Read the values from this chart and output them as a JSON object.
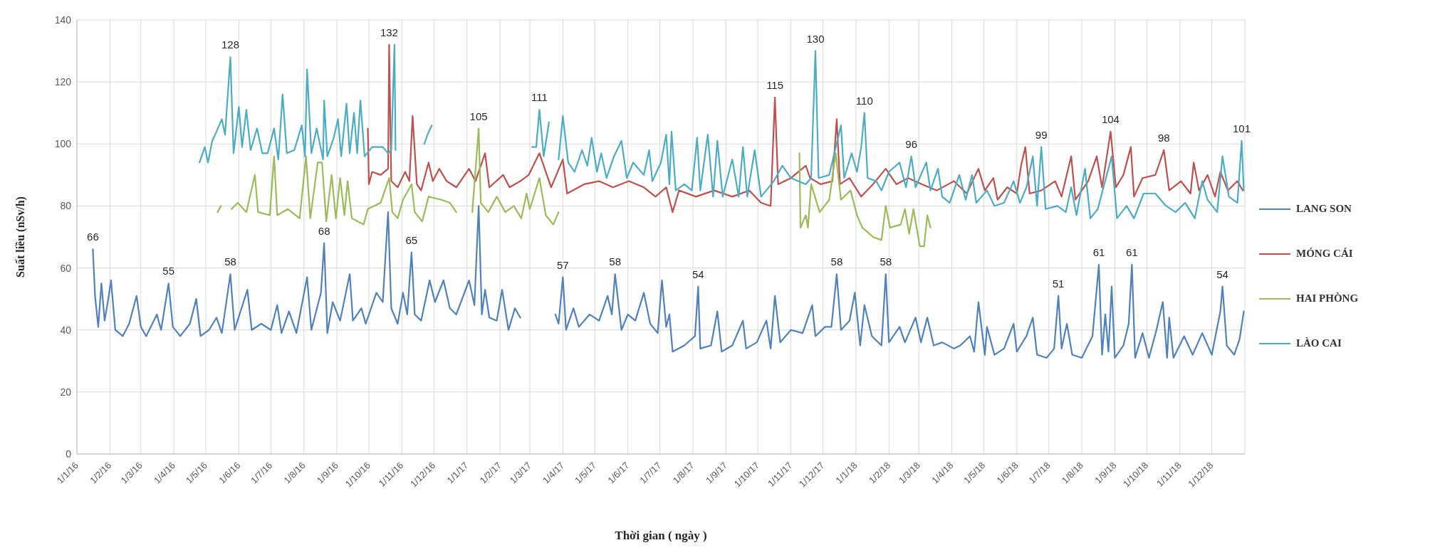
{
  "chart_data": {
    "type": "line",
    "xlabel": "Thời gian ( ngày )",
    "ylabel": "Suất liều (nSv/h)",
    "xlim": [
      "2016-01-01",
      "2019-01-01"
    ],
    "ylim": [
      0,
      140
    ],
    "yticks": [
      0,
      20,
      40,
      60,
      80,
      100,
      120,
      140
    ],
    "xticks": [
      {
        "value": "2016-01-01",
        "label": "1/1/16"
      },
      {
        "value": "2016-02-01",
        "label": "1/2/16"
      },
      {
        "value": "2016-03-01",
        "label": "1/3/16"
      },
      {
        "value": "2016-04-01",
        "label": "1/4/16"
      },
      {
        "value": "2016-05-01",
        "label": "1/5/16"
      },
      {
        "value": "2016-06-01",
        "label": "1/6/16"
      },
      {
        "value": "2016-07-01",
        "label": "1/7/16"
      },
      {
        "value": "2016-08-01",
        "label": "1/8/16"
      },
      {
        "value": "2016-09-01",
        "label": "1/9/16"
      },
      {
        "value": "2016-10-01",
        "label": "1/10/16"
      },
      {
        "value": "2016-11-01",
        "label": "1/11/16"
      },
      {
        "value": "2016-12-01",
        "label": "1/12/16"
      },
      {
        "value": "2017-01-01",
        "label": "1/1/17"
      },
      {
        "value": "2017-02-01",
        "label": "1/2/17"
      },
      {
        "value": "2017-03-01",
        "label": "1/3/17"
      },
      {
        "value": "2017-04-01",
        "label": "1/4/17"
      },
      {
        "value": "2017-05-01",
        "label": "1/5/17"
      },
      {
        "value": "2017-06-01",
        "label": "1/6/17"
      },
      {
        "value": "2017-07-01",
        "label": "1/7/17"
      },
      {
        "value": "2017-08-01",
        "label": "1/8/17"
      },
      {
        "value": "2017-09-01",
        "label": "1/9/17"
      },
      {
        "value": "2017-10-01",
        "label": "1/10/17"
      },
      {
        "value": "2017-11-01",
        "label": "1/11/17"
      },
      {
        "value": "2017-12-01",
        "label": "1/12/17"
      },
      {
        "value": "2018-01-01",
        "label": "1/1/18"
      },
      {
        "value": "2018-02-01",
        "label": "1/2/18"
      },
      {
        "value": "2018-03-01",
        "label": "1/3/18"
      },
      {
        "value": "2018-04-01",
        "label": "1/4/18"
      },
      {
        "value": "2018-05-01",
        "label": "1/5/18"
      },
      {
        "value": "2018-06-01",
        "label": "1/6/18"
      },
      {
        "value": "2018-07-01",
        "label": "1/7/18"
      },
      {
        "value": "2018-08-01",
        "label": "1/8/18"
      },
      {
        "value": "2018-09-01",
        "label": "1/9/18"
      },
      {
        "value": "2018-10-01",
        "label": "1/10/18"
      },
      {
        "value": "2018-11-01",
        "label": "1/11/18"
      },
      {
        "value": "2018-12-01",
        "label": "1/12/18"
      }
    ],
    "grid": true,
    "legend": "right",
    "marker": "none",
    "line_style": "solid",
    "series": [
      {
        "name": "LANG SON",
        "color": "#4f81bd",
        "x": [
          "2016-01-16",
          "2016-01-18",
          "2016-01-21",
          "2016-01-24",
          "2016-01-27",
          "2016-01-30",
          "2016-02-02",
          "2016-02-06",
          "2016-02-13",
          "2016-02-19",
          "2016-02-26",
          "2016-03-01",
          "2016-03-06",
          "2016-03-16",
          "2016-03-20",
          "2016-03-27",
          "2016-03-31",
          "2016-04-07",
          "2016-04-16",
          "2016-04-22",
          "2016-04-26",
          "2016-05-04",
          "2016-05-11",
          "2016-05-16",
          "2016-05-24",
          "2016-05-28",
          "2016-06-09",
          "2016-06-13",
          "2016-06-22",
          "2016-07-01",
          "2016-07-07",
          "2016-07-11",
          "2016-07-18",
          "2016-07-25",
          "2016-08-04",
          "2016-08-08",
          "2016-08-17",
          "2016-08-20",
          "2016-08-23",
          "2016-08-28",
          "2016-09-04",
          "2016-09-13",
          "2016-09-16",
          "2016-09-24",
          "2016-09-28",
          "2016-10-08",
          "2016-10-14",
          "2016-10-19",
          "2016-10-22",
          "2016-10-28",
          "2016-11-02",
          "2016-11-06",
          "2016-11-10",
          "2016-11-13",
          "2016-11-19",
          "2016-11-27",
          "2016-12-02",
          "2016-12-10",
          "2016-12-16",
          "2016-12-22",
          "2017-01-03",
          "2017-01-08",
          "2017-01-12",
          "2017-01-15",
          "2017-01-18",
          "2017-01-22",
          "2017-01-29",
          "2017-02-03",
          "2017-02-09",
          "2017-02-15",
          "2017-02-20",
          "2017-03-05",
          "2017-03-25",
          "2017-03-28",
          "2017-04-01",
          "2017-04-04",
          "2017-04-11",
          "2017-04-16",
          "2017-04-26",
          "2017-05-05",
          "2017-05-13",
          "2017-05-17",
          "2017-05-20",
          "2017-05-26",
          "2017-06-01",
          "2017-06-08",
          "2017-06-16",
          "2017-06-22",
          "2017-06-29",
          "2017-07-03",
          "2017-07-07",
          "2017-07-10",
          "2017-07-13",
          "2017-07-24",
          "2017-08-03",
          "2017-08-06",
          "2017-08-08",
          "2017-08-18",
          "2017-08-24",
          "2017-08-28",
          "2017-09-07",
          "2017-09-17",
          "2017-09-20",
          "2017-09-30",
          "2017-10-09",
          "2017-10-13",
          "2017-10-17",
          "2017-10-22",
          "2017-11-01",
          "2017-11-12",
          "2017-11-21",
          "2017-11-24",
          "2017-12-03",
          "2017-12-09",
          "2017-12-14",
          "2017-12-18",
          "2017-12-26",
          "2017-12-31",
          "2018-01-05",
          "2018-01-09",
          "2018-01-16",
          "2018-01-25",
          "2018-01-29",
          "2018-02-01",
          "2018-02-11",
          "2018-02-16",
          "2018-02-26",
          "2018-03-03",
          "2018-03-09",
          "2018-03-15",
          "2018-03-23",
          "2018-04-03",
          "2018-04-09",
          "2018-04-18",
          "2018-04-22",
          "2018-04-26",
          "2018-05-02",
          "2018-05-04",
          "2018-05-11",
          "2018-05-20",
          "2018-05-29",
          "2018-06-01",
          "2018-06-10",
          "2018-06-16",
          "2018-06-20",
          "2018-06-29",
          "2018-07-06",
          "2018-07-10",
          "2018-07-13",
          "2018-07-18",
          "2018-07-23",
          "2018-08-01",
          "2018-08-11",
          "2018-08-17",
          "2018-08-20",
          "2018-08-23",
          "2018-08-26",
          "2018-08-29",
          "2018-09-01",
          "2018-09-09",
          "2018-09-14",
          "2018-09-17",
          "2018-09-20",
          "2018-09-27",
          "2018-10-03",
          "2018-10-10",
          "2018-10-16",
          "2018-10-20",
          "2018-10-22",
          "2018-10-26",
          "2018-11-05",
          "2018-11-13",
          "2018-11-22",
          "2018-12-01",
          "2018-12-09",
          "2018-12-11",
          "2018-12-15",
          "2018-12-22",
          "2018-12-27",
          "2018-12-31"
        ],
        "values": [
          66,
          51,
          41,
          55,
          43,
          49,
          56,
          40,
          38,
          42,
          51,
          41,
          38,
          45,
          40,
          55,
          41,
          38,
          42,
          50,
          38,
          40,
          44,
          39,
          58,
          40,
          53,
          40,
          42,
          40,
          48,
          39,
          46,
          39,
          57,
          40,
          52,
          68,
          39,
          49,
          43,
          58,
          43,
          47,
          42,
          52,
          49,
          78,
          47,
          42,
          52,
          45,
          65,
          45,
          43,
          56,
          49,
          56,
          47,
          45,
          56,
          48,
          80,
          45,
          53,
          44,
          43,
          53,
          40,
          47,
          44,
          null,
          45,
          42,
          57,
          40,
          47,
          41,
          45,
          43,
          51,
          45,
          58,
          40,
          45,
          43,
          52,
          42,
          39,
          56,
          41,
          45,
          33,
          35,
          38,
          54,
          34,
          35,
          46,
          33,
          35,
          43,
          34,
          36,
          43,
          34,
          51,
          36,
          40,
          39,
          48,
          38,
          41,
          41,
          58,
          40,
          43,
          52,
          35,
          48,
          38,
          35,
          58,
          36,
          41,
          36,
          44,
          36,
          44,
          35,
          36,
          34,
          35,
          38,
          33,
          49,
          32,
          41,
          32,
          34,
          42,
          33,
          38,
          44,
          32,
          31,
          34,
          51,
          34,
          42,
          32,
          31,
          38,
          61,
          32,
          45,
          33,
          54,
          31,
          35,
          42,
          61,
          31,
          39,
          31,
          40,
          49,
          31,
          44,
          31,
          38,
          32,
          39,
          32,
          46,
          54,
          35,
          32,
          37,
          46
        ],
        "value_labels": [
          "66",
          null,
          null,
          null,
          null,
          null,
          null,
          null,
          null,
          null,
          null,
          null,
          null,
          null,
          null,
          "55",
          null,
          null,
          null,
          null,
          null,
          null,
          null,
          null,
          "58",
          null,
          null,
          null,
          null,
          null,
          null,
          null,
          null,
          null,
          null,
          null,
          null,
          "68",
          null,
          null,
          null,
          null,
          null,
          null,
          null,
          null,
          null,
          null,
          null,
          null,
          null,
          null,
          "65",
          null,
          null,
          null,
          null,
          null,
          null,
          null,
          null,
          null,
          null,
          null,
          null,
          null,
          null,
          null,
          null,
          null,
          null,
          null,
          null,
          null,
          "57",
          null,
          null,
          null,
          null,
          null,
          null,
          null,
          "58",
          null,
          null,
          null,
          null,
          null,
          null,
          null,
          null,
          null,
          null,
          null,
          null,
          "54",
          null,
          null,
          null,
          null,
          null,
          null,
          null,
          null,
          null,
          null,
          null,
          null,
          null,
          null,
          null,
          null,
          null,
          null,
          "58",
          null,
          null,
          null,
          null,
          null,
          null,
          null,
          "58",
          null,
          null,
          null,
          null,
          null,
          null,
          null,
          null,
          null,
          null,
          null,
          null,
          null,
          null,
          null,
          null,
          null,
          null,
          null,
          null,
          null,
          null,
          null,
          null,
          "51",
          null,
          null,
          null,
          null,
          null,
          "61",
          null,
          null,
          null,
          null,
          null,
          null,
          null,
          "61",
          null,
          null,
          null,
          null,
          null,
          null,
          null,
          null,
          null,
          null,
          null,
          null,
          null,
          "54",
          null,
          null,
          null,
          null
        ]
      },
      {
        "name": "MÓNG CÁI",
        "color": "#c0504d",
        "x": [
          "2016-09-30",
          "2016-10-01",
          "2016-10-04",
          "2016-10-12",
          "2016-10-19",
          "2016-10-20",
          "2016-10-22",
          "2016-10-28",
          "2016-11-04",
          "2016-11-08",
          "2016-11-11",
          "2016-11-15",
          "2016-11-19",
          "2016-11-26",
          "2016-11-30",
          "2016-12-06",
          "2016-12-13",
          "2016-12-22",
          "2017-01-03",
          "2017-01-09",
          "2017-01-18",
          "2017-01-22",
          "2017-02-04",
          "2017-02-10",
          "2017-02-20",
          "2017-02-28",
          "2017-03-10",
          "2017-03-21",
          "2017-04-01",
          "2017-04-05",
          "2017-04-21",
          "2017-05-05",
          "2017-05-18",
          "2017-06-02",
          "2017-06-16",
          "2017-06-27",
          "2017-07-07",
          "2017-07-13",
          "2017-07-19",
          "2017-08-04",
          "2017-08-21",
          "2017-09-07",
          "2017-09-23",
          "2017-10-04",
          "2017-10-13",
          "2017-10-17",
          "2017-10-20",
          "2017-11-01",
          "2017-11-15",
          "2017-11-19",
          "2017-11-29",
          "2017-12-10",
          "2017-12-14",
          "2017-12-17",
          "2017-12-26",
          "2018-01-06",
          "2018-01-17",
          "2018-01-29",
          "2018-02-08",
          "2018-02-19",
          "2018-03-04",
          "2018-03-18",
          "2018-04-03",
          "2018-04-15",
          "2018-04-26",
          "2018-05-02",
          "2018-05-10",
          "2018-05-14",
          "2018-05-23",
          "2018-06-01",
          "2018-06-05",
          "2018-06-09",
          "2018-06-13",
          "2018-06-24",
          "2018-07-07",
          "2018-07-13",
          "2018-07-22",
          "2018-07-26",
          "2018-08-07",
          "2018-08-15",
          "2018-08-20",
          "2018-08-28",
          "2018-09-02",
          "2018-09-09",
          "2018-09-16",
          "2018-09-19",
          "2018-09-27",
          "2018-10-09",
          "2018-10-17",
          "2018-10-22",
          "2018-11-02",
          "2018-11-11",
          "2018-11-14",
          "2018-11-19",
          "2018-11-27",
          "2018-12-04",
          "2018-12-09",
          "2018-12-16",
          "2018-12-25",
          "2018-12-30"
        ],
        "values": [
          105,
          87,
          91,
          90,
          92,
          132,
          88,
          86,
          91,
          88,
          109,
          87,
          85,
          94,
          88,
          92,
          88,
          86,
          92,
          88,
          97,
          86,
          90,
          86,
          88,
          90,
          97,
          86,
          95,
          84,
          87,
          88,
          86,
          88,
          86,
          83,
          86,
          78,
          85,
          83,
          85,
          83,
          85,
          81,
          80,
          115,
          87,
          89,
          93,
          89,
          87,
          88,
          108,
          87,
          89,
          83,
          87,
          92,
          87,
          89,
          87,
          85,
          88,
          84,
          92,
          85,
          89,
          82,
          86,
          84,
          93,
          99,
          84,
          85,
          88,
          83,
          96,
          82,
          88,
          96,
          86,
          104,
          86,
          90,
          99,
          83,
          89,
          90,
          98,
          85,
          88,
          84,
          94,
          85,
          90,
          83,
          91,
          85,
          88,
          85
        ],
        "value_labels": [
          null,
          null,
          null,
          null,
          null,
          "132",
          null,
          null,
          null,
          null,
          null,
          null,
          null,
          null,
          null,
          null,
          null,
          null,
          null,
          null,
          null,
          null,
          null,
          null,
          null,
          null,
          null,
          null,
          null,
          null,
          null,
          null,
          null,
          null,
          null,
          null,
          null,
          null,
          null,
          null,
          null,
          null,
          null,
          null,
          null,
          "115",
          null,
          null,
          null,
          null,
          null,
          null,
          null,
          null,
          null,
          null,
          null,
          null,
          null,
          null,
          null,
          null,
          null,
          null,
          null,
          null,
          null,
          null,
          null,
          null,
          null,
          null,
          null,
          null,
          null,
          null,
          null,
          null,
          null,
          null,
          null,
          "104",
          null,
          null,
          null,
          null,
          null,
          null,
          "98",
          null,
          null,
          null,
          null,
          null,
          null,
          null,
          null,
          null,
          null,
          null
        ]
      },
      {
        "name": "HAI PHÒNG",
        "color": "#9bbb59",
        "x": [
          "2016-05-12",
          "2016-05-15",
          "2016-05-18",
          "2016-05-25",
          "2016-05-31",
          "2016-06-08",
          "2016-06-16",
          "2016-06-19",
          "2016-06-30",
          "2016-07-04",
          "2016-07-07",
          "2016-07-17",
          "2016-07-28",
          "2016-08-03",
          "2016-08-07",
          "2016-08-14",
          "2016-08-18",
          "2016-08-22",
          "2016-08-27",
          "2016-08-31",
          "2016-09-04",
          "2016-09-08",
          "2016-09-11",
          "2016-09-15",
          "2016-09-26",
          "2016-09-30",
          "2016-10-12",
          "2016-10-20",
          "2016-10-23",
          "2016-10-28",
          "2016-11-02",
          "2016-11-10",
          "2016-11-13",
          "2016-11-20",
          "2016-11-26",
          "2016-12-08",
          "2016-12-16",
          "2016-12-22",
          "2016-12-29",
          "2017-01-06",
          "2017-01-12",
          "2017-01-14",
          "2017-01-21",
          "2017-01-29",
          "2017-02-06",
          "2017-02-14",
          "2017-02-21",
          "2017-02-26",
          "2017-03-01",
          "2017-03-10",
          "2017-03-16",
          "2017-03-23",
          "2017-03-28",
          "2017-06-01",
          "2017-11-09",
          "2017-11-10",
          "2017-11-15",
          "2017-11-17",
          "2017-11-20",
          "2017-11-28",
          "2017-12-07",
          "2017-12-13",
          "2017-12-18",
          "2017-12-27",
          "2018-01-02",
          "2018-01-07",
          "2018-01-17",
          "2018-01-25",
          "2018-01-29",
          "2018-02-02",
          "2018-02-12",
          "2018-02-16",
          "2018-02-20",
          "2018-02-24",
          "2018-03-02",
          "2018-03-06",
          "2018-03-09",
          "2018-03-12"
        ],
        "values": [
          78,
          80,
          null,
          79,
          81,
          78,
          90,
          78,
          77,
          96,
          77,
          79,
          76,
          96,
          76,
          94,
          94,
          75,
          90,
          76,
          89,
          77,
          88,
          76,
          74,
          79,
          81,
          89,
          78,
          76,
          82,
          87,
          78,
          75,
          83,
          82,
          81,
          78,
          null,
          78,
          105,
          81,
          78,
          83,
          78,
          80,
          76,
          84,
          79,
          89,
          77,
          74,
          78,
          null,
          97,
          73,
          77,
          73,
          87,
          78,
          82,
          97,
          82,
          85,
          77,
          73,
          70,
          69,
          80,
          73,
          74,
          79,
          71,
          79,
          67,
          67,
          77,
          73
        ],
        "value_labels": [
          null,
          null,
          null,
          null,
          null,
          null,
          null,
          null,
          null,
          null,
          null,
          null,
          null,
          null,
          null,
          null,
          null,
          null,
          null,
          null,
          null,
          null,
          null,
          null,
          null,
          null,
          null,
          null,
          null,
          null,
          null,
          null,
          null,
          null,
          null,
          null,
          null,
          null,
          null,
          null,
          "105",
          null,
          null,
          null,
          null,
          null,
          null,
          null,
          null,
          null,
          null,
          null,
          null,
          null,
          null,
          null,
          null,
          null,
          null,
          null,
          null,
          null,
          null,
          null,
          null,
          null,
          null,
          null,
          null,
          null,
          null,
          null,
          null,
          null,
          null,
          null,
          null,
          null
        ]
      },
      {
        "name": "LÀO CAI",
        "color": "#4bacc6",
        "x": [
          "2016-04-25",
          "2016-04-30",
          "2016-05-03",
          "2016-05-07",
          "2016-05-11",
          "2016-05-16",
          "2016-05-19",
          "2016-05-24",
          "2016-05-27",
          "2016-06-01",
          "2016-06-04",
          "2016-06-08",
          "2016-06-12",
          "2016-06-18",
          "2016-06-23",
          "2016-06-28",
          "2016-07-04",
          "2016-07-08",
          "2016-07-12",
          "2016-07-16",
          "2016-07-23",
          "2016-07-30",
          "2016-08-02",
          "2016-08-04",
          "2016-08-08",
          "2016-08-13",
          "2016-08-19",
          "2016-08-20",
          "2016-08-23",
          "2016-08-29",
          "2016-09-02",
          "2016-09-05",
          "2016-09-10",
          "2016-09-13",
          "2016-09-17",
          "2016-09-20",
          "2016-09-23",
          "2016-09-27",
          "2016-10-04",
          "2016-10-14",
          "2016-10-19",
          "2016-10-22",
          "2016-10-25",
          "2016-10-26",
          "2016-11-10",
          "2016-11-22",
          "2016-11-25",
          "2016-11-29",
          "2017-01-15",
          "2017-03-03",
          "2017-03-07",
          "2017-03-10",
          "2017-03-14",
          "2017-03-19",
          "2017-03-22",
          "2017-03-28",
          "2017-04-01",
          "2017-04-06",
          "2017-04-12",
          "2017-04-19",
          "2017-04-24",
          "2017-04-28",
          "2017-05-03",
          "2017-05-07",
          "2017-05-12",
          "2017-05-19",
          "2017-05-26",
          "2017-05-31",
          "2017-06-06",
          "2017-06-16",
          "2017-06-21",
          "2017-06-24",
          "2017-07-02",
          "2017-07-07",
          "2017-07-10",
          "2017-07-12",
          "2017-07-16",
          "2017-07-24",
          "2017-07-31",
          "2017-08-05",
          "2017-08-08",
          "2017-08-15",
          "2017-08-20",
          "2017-08-24",
          "2017-08-29",
          "2017-09-07",
          "2017-09-13",
          "2017-09-17",
          "2017-09-21",
          "2017-09-28",
          "2017-10-04",
          "2017-10-16",
          "2017-10-24",
          "2017-11-01",
          "2017-11-15",
          "2017-11-20",
          "2017-11-24",
          "2017-11-27",
          "2017-12-07",
          "2017-12-18",
          "2017-12-21",
          "2017-12-28",
          "2018-01-02",
          "2018-01-06",
          "2018-01-09",
          "2018-01-12",
          "2018-01-20",
          "2018-01-25",
          "2018-02-01",
          "2018-02-11",
          "2018-02-17",
          "2018-02-22",
          "2018-02-26",
          "2018-03-08",
          "2018-03-12",
          "2018-03-19",
          "2018-03-23",
          "2018-03-30",
          "2018-04-08",
          "2018-04-14",
          "2018-04-20",
          "2018-04-24",
          "2018-05-04",
          "2018-05-11",
          "2018-05-20",
          "2018-05-29",
          "2018-06-04",
          "2018-06-10",
          "2018-06-16",
          "2018-06-20",
          "2018-06-24",
          "2018-06-28",
          "2018-07-09",
          "2018-07-17",
          "2018-07-22",
          "2018-07-27",
          "2018-08-04",
          "2018-08-09",
          "2018-08-16",
          "2018-08-29",
          "2018-09-03",
          "2018-09-12",
          "2018-09-19",
          "2018-09-28",
          "2018-10-09",
          "2018-10-19",
          "2018-10-28",
          "2018-11-06",
          "2018-11-15",
          "2018-11-22",
          "2018-11-27",
          "2018-12-06",
          "2018-12-11",
          "2018-12-17",
          "2018-12-25",
          "2018-12-29",
          "2018-12-31"
        ],
        "values": [
          94,
          99,
          94,
          101,
          104,
          108,
          103,
          128,
          97,
          112,
          99,
          111,
          98,
          105,
          97,
          97,
          105,
          95,
          116,
          97,
          98,
          106,
          96,
          124,
          97,
          105,
          95,
          114,
          96,
          102,
          108,
          96,
          113,
          97,
          110,
          97,
          114,
          96,
          99,
          99,
          97,
          98,
          132,
          98,
          null,
          100,
          103,
          106,
          null,
          99,
          99,
          111,
          96,
          107,
          null,
          95,
          109,
          94,
          91,
          98,
          93,
          102,
          91,
          97,
          89,
          96,
          101,
          89,
          94,
          90,
          98,
          88,
          94,
          103,
          87,
          104,
          85,
          87,
          85,
          102,
          85,
          103,
          83,
          101,
          83,
          95,
          83,
          99,
          83,
          98,
          83,
          88,
          93,
          89,
          87,
          89,
          130,
          89,
          90,
          106,
          89,
          97,
          91,
          99,
          110,
          89,
          88,
          85,
          91,
          94,
          86,
          96,
          86,
          94,
          85,
          92,
          83,
          81,
          90,
          82,
          90,
          81,
          85,
          80,
          81,
          88,
          81,
          86,
          96,
          80,
          99,
          79,
          80,
          78,
          86,
          77,
          92,
          76,
          79,
          96,
          76,
          80,
          76,
          84,
          84,
          80,
          78,
          81,
          76,
          88,
          82,
          78,
          96,
          83,
          81,
          101,
          85
        ],
        "value_labels": [
          null,
          null,
          null,
          null,
          null,
          null,
          null,
          "128",
          null,
          null,
          null,
          null,
          null,
          null,
          null,
          null,
          null,
          null,
          null,
          null,
          null,
          null,
          null,
          null,
          null,
          null,
          null,
          null,
          null,
          null,
          null,
          null,
          null,
          null,
          null,
          null,
          null,
          null,
          null,
          null,
          null,
          null,
          null,
          null,
          null,
          null,
          null,
          null,
          null,
          null,
          null,
          "111",
          null,
          null,
          null,
          null,
          null,
          null,
          null,
          null,
          null,
          null,
          null,
          null,
          null,
          null,
          null,
          null,
          null,
          null,
          null,
          null,
          null,
          null,
          null,
          null,
          null,
          null,
          null,
          null,
          null,
          null,
          null,
          null,
          null,
          null,
          null,
          null,
          null,
          null,
          null,
          null,
          null,
          null,
          null,
          null,
          "130",
          null,
          null,
          null,
          null,
          null,
          null,
          null,
          "110",
          null,
          null,
          null,
          null,
          null,
          null,
          "96",
          null,
          null,
          null,
          null,
          null,
          null,
          null,
          null,
          null,
          null,
          null,
          null,
          null,
          null,
          null,
          null,
          null,
          null,
          "99",
          null,
          null,
          null,
          null,
          null,
          null,
          null,
          null,
          null,
          null,
          null,
          null,
          null,
          null,
          null,
          null,
          null,
          null,
          null,
          null,
          null,
          null,
          null,
          null,
          "101",
          null
        ]
      }
    ]
  }
}
